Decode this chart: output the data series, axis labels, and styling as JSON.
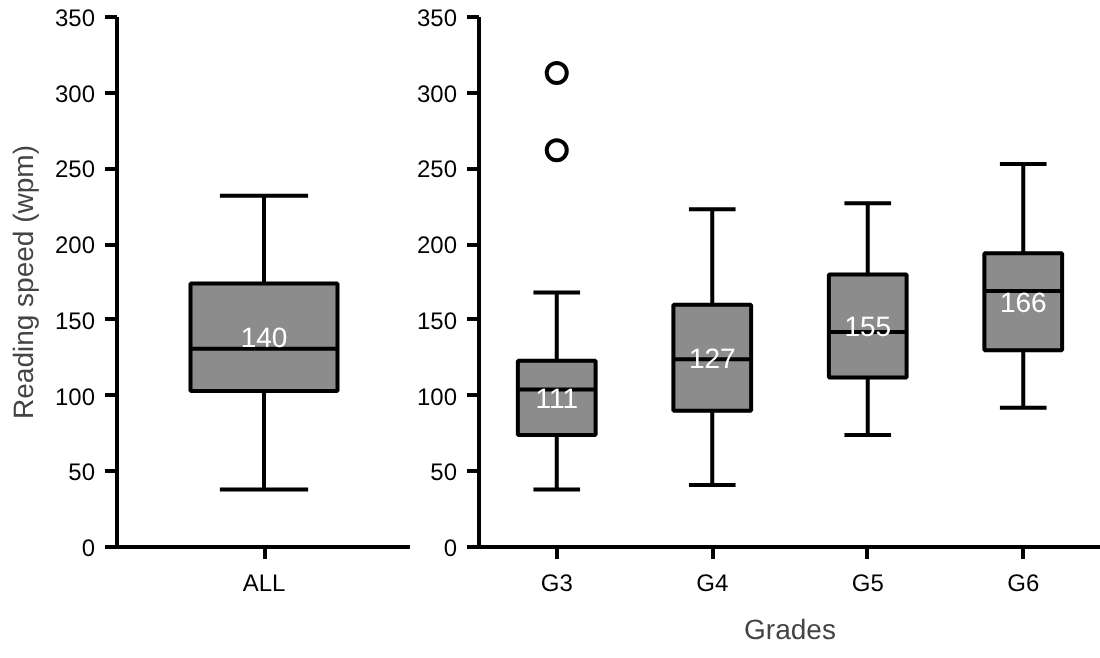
{
  "chart_data": [
    {
      "type": "box",
      "ylabel": "Reading speed (wpm)",
      "categories": [
        "ALL"
      ],
      "color": "#8c8c8c",
      "ylim": [
        0,
        350
      ],
      "yticks": [
        0,
        50,
        100,
        150,
        200,
        250,
        300,
        350
      ],
      "grid": false,
      "boxes": [
        {
          "low": 38,
          "q1": 103,
          "median": 131,
          "q3": 174,
          "high": 232
        }
      ],
      "annotations": [
        "140"
      ]
    },
    {
      "type": "box",
      "xlabel": "Grades",
      "categories": [
        "G3",
        "G4",
        "G5",
        "G6"
      ],
      "color": "#8c8c8c",
      "ylim": [
        0,
        350
      ],
      "yticks": [
        0,
        50,
        100,
        150,
        200,
        250,
        300,
        350
      ],
      "grid": false,
      "boxes": [
        {
          "low": 38,
          "q1": 74,
          "median": 104,
          "q3": 123,
          "high": 168,
          "outliers": [
            313,
            262
          ]
        },
        {
          "low": 41,
          "q1": 90,
          "median": 124,
          "q3": 160,
          "high": 223
        },
        {
          "low": 74,
          "q1": 112,
          "median": 142,
          "q3": 180,
          "high": 227
        },
        {
          "low": 92,
          "q1": 130,
          "median": 169,
          "q3": 194,
          "high": 253
        }
      ],
      "annotations": [
        "111",
        "127",
        "155",
        "166"
      ]
    }
  ]
}
